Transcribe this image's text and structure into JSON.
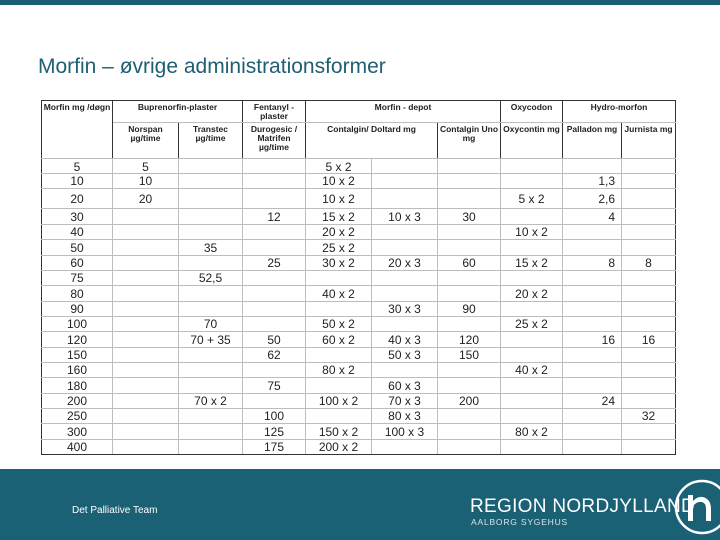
{
  "slide": {
    "title": "Morfin – øvrige administrationsformer",
    "footer_label": "Det Palliative Team",
    "brand_name": "REGION NORDJYLLAND",
    "brand_sub": "AALBORG SYGEHUS",
    "colors": {
      "primary": "#1b6175",
      "title": "#1f5f73"
    }
  },
  "table": {
    "groups": [
      "Morfin mg /døgn",
      "Buprenorfin-plaster",
      "Fentanyl - plaster",
      "Morfin - depot",
      "Oxycodon",
      "Hydro-morfon"
    ],
    "subs": [
      "Norspan µg/time",
      "Transtec µg/time",
      "Durogesic / Matrifen µg/time",
      "Contalgin/ Doltard mg",
      "Contalgin Uno mg",
      "Oxycontin mg",
      "Palladon mg",
      "Jurnista mg"
    ],
    "rows": [
      [
        "5",
        "5",
        "",
        "",
        "5 x 2",
        "",
        "",
        "",
        "",
        ""
      ],
      [
        "10",
        "10",
        "",
        "",
        "10 x 2",
        "",
        "",
        "",
        "1,3",
        ""
      ],
      [
        "20",
        "20",
        "",
        "",
        "10 x 2",
        "",
        "",
        "5 x 2",
        "2,6",
        ""
      ],
      [
        "30",
        "",
        "",
        "12",
        "15 x 2",
        "10 x 3",
        "30",
        "",
        "4",
        ""
      ],
      [
        "40",
        "",
        "",
        "",
        "20 x 2",
        "",
        "",
        "10 x 2",
        "",
        ""
      ],
      [
        "50",
        "",
        "35",
        "",
        "25 x 2",
        "",
        "",
        "",
        "",
        ""
      ],
      [
        "60",
        "",
        "",
        "25",
        "30 x 2",
        "20 x 3",
        "60",
        "15 x 2",
        "8",
        "8"
      ],
      [
        "75",
        "",
        "52,5",
        "",
        "",
        "",
        "",
        "",
        "",
        ""
      ],
      [
        "80",
        "",
        "",
        "",
        "40 x 2",
        "",
        "",
        "20 x 2",
        "",
        ""
      ],
      [
        "90",
        "",
        "",
        "",
        "",
        "30 x 3",
        "90",
        "",
        "",
        ""
      ],
      [
        "100",
        "",
        "70",
        "",
        "50 x 2",
        "",
        "",
        "25 x 2",
        "",
        ""
      ],
      [
        "120",
        "",
        "70 + 35",
        "50",
        "60 x 2",
        "40 x 3",
        "120",
        "",
        "16",
        "16"
      ],
      [
        "150",
        "",
        "",
        "62",
        "",
        "50 x 3",
        "150",
        "",
        "",
        ""
      ],
      [
        "160",
        "",
        "",
        "",
        "80 x 2",
        "",
        "",
        "40 x 2",
        "",
        ""
      ],
      [
        "180",
        "",
        "",
        "75",
        "",
        "60 x 3",
        "",
        "",
        "",
        ""
      ],
      [
        "200",
        "",
        "70 x 2",
        "",
        "100 x 2",
        "70 x 3",
        "200",
        "",
        "24",
        ""
      ],
      [
        "250",
        "",
        "",
        "100",
        "",
        "80 x 3",
        "",
        "",
        "",
        "32"
      ],
      [
        "300",
        "",
        "",
        "125",
        "150 x 2",
        "100 x 3",
        "",
        "80 x 2",
        "",
        ""
      ],
      [
        "400",
        "",
        "",
        "175",
        "200 x 2",
        "",
        "",
        "",
        "",
        ""
      ]
    ]
  }
}
